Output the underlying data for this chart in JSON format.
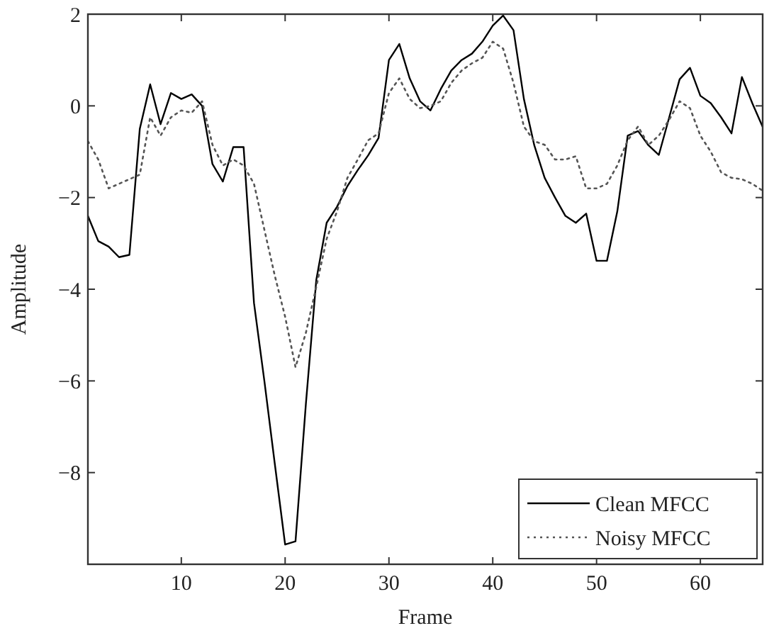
{
  "chart_data": {
    "type": "line",
    "xlabel": "Frame",
    "ylabel": "Amplitude",
    "x": [
      1,
      2,
      3,
      4,
      5,
      6,
      7,
      8,
      9,
      10,
      11,
      12,
      13,
      14,
      15,
      16,
      17,
      18,
      19,
      20,
      21,
      22,
      23,
      24,
      25,
      26,
      27,
      28,
      29,
      30,
      31,
      32,
      33,
      34,
      35,
      36,
      37,
      38,
      39,
      40,
      41,
      42,
      43,
      44,
      45,
      46,
      47,
      48,
      49,
      50,
      51,
      52,
      53,
      54,
      55,
      56,
      57,
      58,
      59,
      60,
      61,
      62,
      63,
      64,
      65,
      66
    ],
    "series": [
      {
        "name": "Clean MFCC",
        "color": "#000000",
        "line_style": "solid",
        "values": [
          -2.4,
          -2.95,
          -3.07,
          -3.3,
          -3.25,
          -0.5,
          0.47,
          -0.4,
          0.28,
          0.15,
          0.25,
          0.0,
          -1.27,
          -1.65,
          -0.9,
          -0.9,
          -4.3,
          -6.0,
          -7.8,
          -9.57,
          -9.5,
          -6.5,
          -3.8,
          -2.55,
          -2.2,
          -1.75,
          -1.4,
          -1.08,
          -0.7,
          1.0,
          1.35,
          0.6,
          0.1,
          -0.1,
          0.37,
          0.77,
          1.0,
          1.14,
          1.4,
          1.75,
          1.97,
          1.65,
          0.15,
          -0.86,
          -1.57,
          -2.0,
          -2.4,
          -2.55,
          -2.35,
          -3.38,
          -3.38,
          -2.3,
          -0.65,
          -0.55,
          -0.86,
          -1.07,
          -0.25,
          0.58,
          0.83,
          0.22,
          0.06,
          -0.25,
          -0.6,
          0.63,
          0.06,
          -0.46
        ]
      },
      {
        "name": "Noisy MFCC",
        "color": "#555555",
        "line_style": "dotted",
        "values": [
          -0.77,
          -1.17,
          -1.8,
          -1.7,
          -1.6,
          -1.5,
          -0.25,
          -0.65,
          -0.25,
          -0.1,
          -0.15,
          0.1,
          -0.85,
          -1.3,
          -1.17,
          -1.3,
          -1.7,
          -2.7,
          -3.7,
          -4.6,
          -5.7,
          -4.95,
          -3.95,
          -2.9,
          -2.3,
          -1.57,
          -1.17,
          -0.75,
          -0.6,
          0.28,
          0.6,
          0.15,
          -0.05,
          0.0,
          0.1,
          0.5,
          0.77,
          0.93,
          1.05,
          1.4,
          1.25,
          0.5,
          -0.45,
          -0.77,
          -0.85,
          -1.17,
          -1.17,
          -1.1,
          -1.8,
          -1.8,
          -1.7,
          -1.3,
          -0.75,
          -0.45,
          -0.85,
          -0.65,
          -0.3,
          0.1,
          -0.05,
          -0.65,
          -1.0,
          -1.45,
          -1.57,
          -1.6,
          -1.7,
          -1.85
        ]
      }
    ],
    "xlim": [
      1,
      66
    ],
    "xticks": [
      10,
      20,
      30,
      40,
      50,
      60
    ],
    "ylim": [
      -10,
      2
    ],
    "yticks": [
      -8,
      -6,
      -4,
      -2,
      0,
      2
    ],
    "grid": false,
    "legend": "bottom right"
  }
}
